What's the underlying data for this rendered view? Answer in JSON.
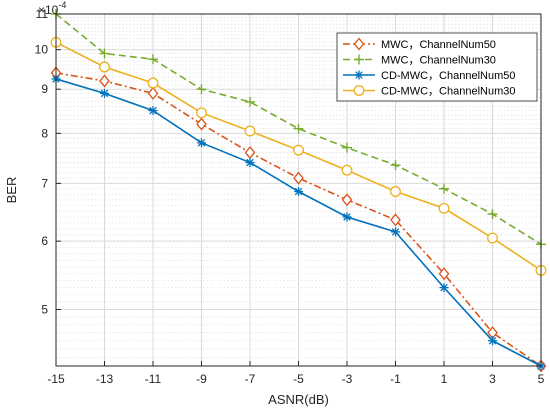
{
  "chart_data": {
    "type": "line",
    "xlabel": "ASNR(dB)",
    "ylabel": "BER",
    "exponent_label": "×10",
    "exponent_power": "-4",
    "yscale": "log",
    "xlim": [
      -15,
      5
    ],
    "ylim": [
      4.3,
      11
    ],
    "grid": true,
    "legend_position": "top-right",
    "x_ticks": [
      "-15",
      "-13",
      "-11",
      "-9",
      "-7",
      "-5",
      "-3",
      "-1",
      "1",
      "3",
      "5"
    ],
    "y_ticks": [
      {
        "value": 5,
        "label": "5"
      },
      {
        "value": 6,
        "label": "6"
      },
      {
        "value": 7,
        "label": "7"
      },
      {
        "value": 8,
        "label": "8"
      },
      {
        "value": 9,
        "label": "9"
      },
      {
        "value": 10,
        "label": "10"
      },
      {
        "value": 11,
        "label": "11"
      }
    ],
    "x": [
      -15,
      -13,
      -11,
      -9,
      -7,
      -5,
      -3,
      -1,
      1,
      3,
      5
    ],
    "series": [
      {
        "name": "MWC，ChannelNum50",
        "color": "#D95319",
        "dash": "dashdot",
        "marker": "diamond",
        "values": [
          9.4,
          9.2,
          8.9,
          8.2,
          7.6,
          7.1,
          6.7,
          6.35,
          5.5,
          4.7,
          4.3
        ]
      },
      {
        "name": "MWC，ChannelNum30",
        "color": "#77AC30",
        "dash": "dashed",
        "marker": "plus",
        "values": [
          11.0,
          9.9,
          9.75,
          9.0,
          8.7,
          8.1,
          7.7,
          7.35,
          6.9,
          6.45,
          5.95
        ]
      },
      {
        "name": "CD-MWC，ChannelNum50",
        "color": "#0072BD",
        "dash": "solid",
        "marker": "asterisk",
        "values": [
          9.25,
          8.9,
          8.5,
          7.8,
          7.4,
          6.85,
          6.4,
          6.15,
          5.3,
          4.6,
          4.28
        ]
      },
      {
        "name": "CD-MWC，ChannelNum30",
        "color": "#EDB120",
        "dash": "solid",
        "marker": "circle",
        "values": [
          10.2,
          9.55,
          9.15,
          8.45,
          8.05,
          7.65,
          7.25,
          6.85,
          6.55,
          6.05,
          5.55
        ]
      }
    ]
  }
}
